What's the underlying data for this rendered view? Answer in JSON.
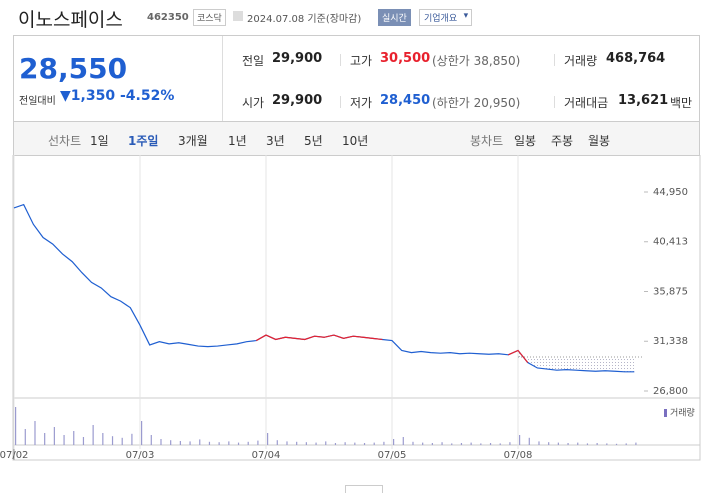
{
  "header": {
    "name": "이노스페이스",
    "code": "462350",
    "market": "코스닥",
    "date": "2024.07.08 기준(장마감)",
    "realtime": "실시간",
    "company_menu": "기업개요"
  },
  "price_panel": {
    "price": "28,550",
    "change_label": "전일대비",
    "change": "1,350",
    "change_rate": "-4.52%",
    "cells": [
      {
        "label": "전일",
        "value": "29,900"
      },
      {
        "label": "고가",
        "value": "30,500",
        "note": "(상한가 38,850)"
      },
      {
        "label": "거래량",
        "value": "468,764"
      },
      {
        "label": "시가",
        "value": "29,900"
      },
      {
        "label": "저가",
        "value": "28,450",
        "note": "(하한가 20,950)"
      },
      {
        "label": "거래대금",
        "value": "13,621",
        "unit": "백만"
      }
    ]
  },
  "tabs": {
    "line_label": "선차트",
    "periods": [
      "1일",
      "1주일",
      "3개월",
      "1년",
      "3년",
      "5년",
      "10년"
    ],
    "active_index": 1,
    "candle_label": "봉차트",
    "candles": [
      "일봉",
      "주봉",
      "월봉"
    ]
  },
  "chart_data": [
    {
      "type": "line",
      "xlim": [
        0,
        65
      ],
      "xticks": [
        {
          "value": 0,
          "label": "07/02"
        },
        {
          "value": 13,
          "label": "07/03"
        },
        {
          "value": 26,
          "label": "07/04"
        },
        {
          "value": 39,
          "label": "07/05"
        },
        {
          "value": 52,
          "label": "07/08"
        }
      ],
      "ylim": [
        26800,
        44950
      ],
      "yticks": [
        {
          "value": 44950,
          "label": "44,950"
        },
        {
          "value": 40413,
          "label": "40,413"
        },
        {
          "value": 35875,
          "label": "35,875"
        },
        {
          "value": 31338,
          "label": "31,338"
        },
        {
          "value": 26800,
          "label": "26,800"
        }
      ],
      "reference_line": 29900,
      "series": [
        {
          "color": "#1f5fd1",
          "values": [
            43500,
            43800,
            42000,
            40800,
            40200,
            39300,
            38600,
            37600,
            36700,
            36200,
            35400,
            35000,
            34400,
            32800,
            31000,
            31300,
            31100,
            31200,
            31050,
            30900,
            30850,
            30900,
            31000,
            31100,
            31300,
            31400,
            31900,
            31500,
            31700,
            31600,
            31500,
            31800,
            31700,
            31900,
            31600,
            31800,
            31700,
            31600,
            31500,
            31400,
            30500,
            30300,
            30400,
            30300,
            30250,
            30300,
            30200,
            30250,
            30200,
            30150,
            30200,
            30100,
            30500,
            29400,
            28900,
            28800,
            28700,
            28750,
            28700,
            28650,
            28600,
            28650,
            28600,
            28550,
            28550
          ]
        },
        {
          "color": "#e8212d",
          "values": [
            null,
            null,
            null,
            null,
            null,
            null,
            null,
            null,
            null,
            null,
            null,
            null,
            null,
            null,
            null,
            null,
            null,
            null,
            null,
            null,
            null,
            null,
            null,
            null,
            null,
            31400,
            31900,
            31500,
            31700,
            31600,
            31500,
            31800,
            31700,
            31900,
            31600,
            31800,
            31700,
            31600,
            31500,
            null,
            null,
            null,
            null,
            null,
            null,
            null,
            null,
            null,
            null,
            null,
            null,
            30100,
            30500,
            29400,
            null,
            null,
            null,
            null,
            null,
            null,
            null,
            null,
            null,
            null,
            null
          ]
        }
      ]
    },
    {
      "type": "bar",
      "legend": "거래량",
      "color": "#9b9bcf",
      "ylim": [
        0,
        100000
      ],
      "values": [
        95000,
        40000,
        60000,
        30000,
        45000,
        25000,
        35000,
        20000,
        50000,
        30000,
        22000,
        18000,
        28000,
        60000,
        25000,
        15000,
        12000,
        10000,
        9000,
        14000,
        8000,
        7000,
        9000,
        6000,
        8000,
        11000,
        30000,
        12000,
        9000,
        8000,
        7000,
        6000,
        9000,
        5000,
        7000,
        6000,
        5000,
        6000,
        8000,
        15000,
        20000,
        8000,
        6000,
        5000,
        7000,
        4000,
        5000,
        6000,
        4000,
        5000,
        4000,
        7000,
        25000,
        18000,
        9000,
        7000,
        6000,
        5000,
        6000,
        4000,
        5000,
        4000,
        3000,
        4000,
        6000
      ]
    }
  ]
}
